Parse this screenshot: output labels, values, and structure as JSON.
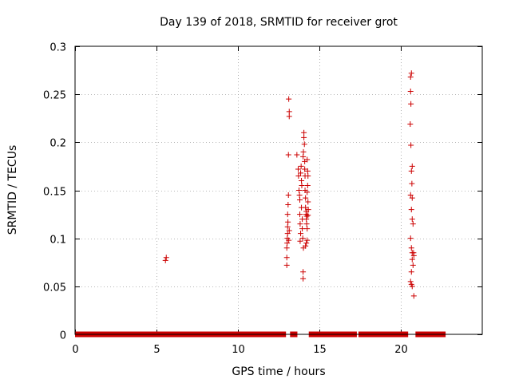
{
  "chart_data": {
    "type": "scatter",
    "title": "Day 139 of 2018, SRMTID for receiver grot",
    "xlabel": "GPS time / hours",
    "ylabel": "SRMTID / TECUs",
    "xlim": [
      0,
      25
    ],
    "ylim": [
      0,
      0.3
    ],
    "xticks": [
      0,
      5,
      10,
      15,
      20
    ],
    "xtick_labels": [
      "0",
      "5",
      "10",
      "15",
      "20"
    ],
    "yticks": [
      0,
      0.05,
      0.1,
      0.15,
      0.2,
      0.25,
      0.3
    ],
    "ytick_labels": [
      "0",
      "0.05",
      "0.1",
      "0.15",
      "0.2",
      "0.25",
      "0.3"
    ],
    "grid": true,
    "marker": "+",
    "color": "#cc0000",
    "zero_segments": [
      [
        0.0,
        12.95
      ],
      [
        13.2,
        13.65
      ],
      [
        14.35,
        17.3
      ],
      [
        17.4,
        20.45
      ],
      [
        20.9,
        22.75
      ]
    ],
    "points": [
      [
        5.55,
        0.077
      ],
      [
        5.6,
        0.08
      ],
      [
        13.0,
        0.072
      ],
      [
        13.0,
        0.08
      ],
      [
        13.0,
        0.09
      ],
      [
        13.02,
        0.095
      ],
      [
        13.03,
        0.1
      ],
      [
        13.05,
        0.105
      ],
      [
        13.05,
        0.112
      ],
      [
        13.07,
        0.117
      ],
      [
        13.05,
        0.125
      ],
      [
        13.08,
        0.135
      ],
      [
        13.1,
        0.145
      ],
      [
        13.12,
        0.098
      ],
      [
        13.15,
        0.108
      ],
      [
        13.1,
        0.187
      ],
      [
        13.15,
        0.227
      ],
      [
        13.15,
        0.232
      ],
      [
        13.12,
        0.245
      ],
      [
        13.62,
        0.187
      ],
      [
        13.7,
        0.172
      ],
      [
        13.72,
        0.165
      ],
      [
        13.75,
        0.15
      ],
      [
        13.78,
        0.145
      ],
      [
        13.8,
        0.14
      ],
      [
        13.8,
        0.125
      ],
      [
        13.82,
        0.115
      ],
      [
        13.85,
        0.105
      ],
      [
        13.82,
        0.097
      ],
      [
        13.85,
        0.168
      ],
      [
        13.88,
        0.175
      ],
      [
        13.9,
        0.16
      ],
      [
        13.92,
        0.155
      ],
      [
        13.9,
        0.132
      ],
      [
        13.95,
        0.12
      ],
      [
        13.95,
        0.11
      ],
      [
        13.98,
        0.1
      ],
      [
        14.0,
        0.065
      ],
      [
        14.0,
        0.058
      ],
      [
        14.02,
        0.09
      ],
      [
        14.0,
        0.185
      ],
      [
        14.02,
        0.19
      ],
      [
        14.05,
        0.205
      ],
      [
        14.05,
        0.21
      ],
      [
        14.08,
        0.198
      ],
      [
        14.1,
        0.18
      ],
      [
        14.1,
        0.172
      ],
      [
        14.12,
        0.165
      ],
      [
        14.12,
        0.15
      ],
      [
        14.15,
        0.142
      ],
      [
        14.15,
        0.132
      ],
      [
        14.18,
        0.125
      ],
      [
        14.2,
        0.12
      ],
      [
        14.2,
        0.128
      ],
      [
        14.22,
        0.123
      ],
      [
        14.22,
        0.115
      ],
      [
        14.25,
        0.11
      ],
      [
        14.2,
        0.095
      ],
      [
        14.25,
        0.098
      ],
      [
        14.15,
        0.092
      ],
      [
        14.25,
        0.182
      ],
      [
        14.28,
        0.17
      ],
      [
        14.3,
        0.165
      ],
      [
        14.28,
        0.155
      ],
      [
        14.25,
        0.148
      ],
      [
        14.3,
        0.138
      ],
      [
        14.32,
        0.13
      ],
      [
        14.3,
        0.124
      ],
      [
        20.6,
        0.268
      ],
      [
        20.65,
        0.272
      ],
      [
        20.6,
        0.253
      ],
      [
        20.62,
        0.24
      ],
      [
        20.58,
        0.219
      ],
      [
        20.62,
        0.197
      ],
      [
        20.65,
        0.17
      ],
      [
        20.7,
        0.175
      ],
      [
        20.68,
        0.157
      ],
      [
        20.6,
        0.145
      ],
      [
        20.7,
        0.142
      ],
      [
        20.65,
        0.13
      ],
      [
        20.7,
        0.12
      ],
      [
        20.75,
        0.115
      ],
      [
        20.6,
        0.1
      ],
      [
        20.65,
        0.09
      ],
      [
        20.7,
        0.085
      ],
      [
        20.78,
        0.085
      ],
      [
        20.8,
        0.082
      ],
      [
        20.7,
        0.078
      ],
      [
        20.75,
        0.072
      ],
      [
        20.65,
        0.065
      ],
      [
        20.6,
        0.055
      ],
      [
        20.65,
        0.052
      ],
      [
        20.7,
        0.05
      ],
      [
        20.8,
        0.04
      ]
    ]
  }
}
